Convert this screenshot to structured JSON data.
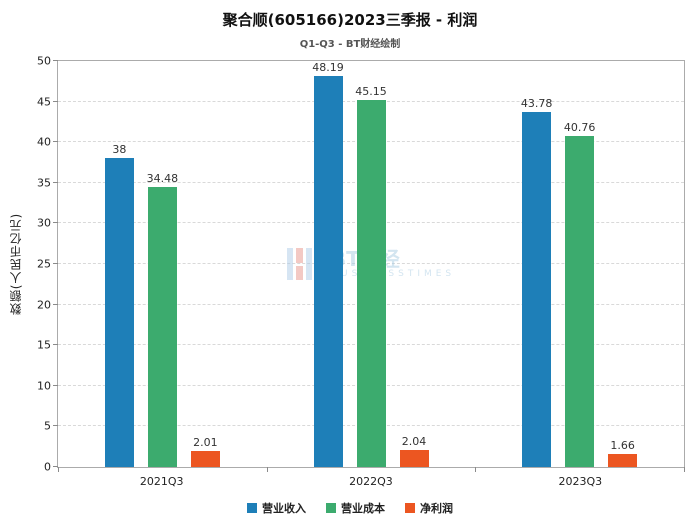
{
  "chart_data": {
    "type": "bar",
    "title": "聚合顺(605166)2023三季报 - 利润",
    "subtitle": "Q1-Q3 - BT财经绘制",
    "ylabel": "数额(人民币亿元)",
    "categories": [
      "2021Q3",
      "2022Q3",
      "2023Q3"
    ],
    "series": [
      {
        "name": "营业收入",
        "color": "#1e7fb8",
        "values": [
          38,
          48.19,
          43.78
        ],
        "labels": [
          "38",
          "48.19",
          "43.78"
        ]
      },
      {
        "name": "营业成本",
        "color": "#3cab6e",
        "values": [
          34.48,
          45.15,
          40.76
        ],
        "labels": [
          "34.48",
          "45.15",
          "40.76"
        ]
      },
      {
        "name": "净利润",
        "color": "#ec5621",
        "values": [
          2.01,
          2.04,
          1.66
        ],
        "labels": [
          "2.01",
          "2.04",
          "1.66"
        ]
      }
    ],
    "ylim": [
      0,
      50
    ],
    "ytick_step": 5,
    "grid": true,
    "legend_position": "bottom"
  },
  "watermark": {
    "title": "BT财经",
    "subtitle": "BUSINESSTIMES"
  }
}
